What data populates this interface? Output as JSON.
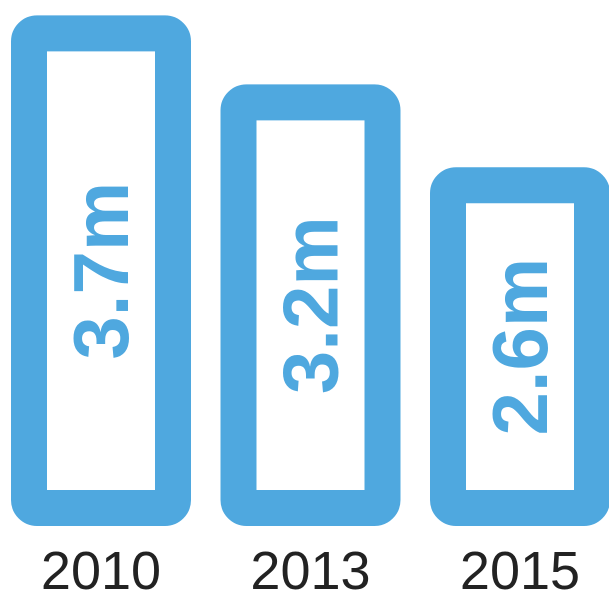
{
  "chart_data": {
    "type": "bar",
    "orientation": "vertical",
    "categories": [
      "2010",
      "2013",
      "2015"
    ],
    "values": [
      3.7,
      3.2,
      2.6
    ],
    "value_labels": [
      "3.7m",
      "3.2m",
      "2.6m"
    ],
    "unit": "m",
    "title": "",
    "xlabel": "",
    "ylabel": "",
    "grid": false,
    "legend": "none",
    "colors": {
      "bar": "#4fa8df",
      "bar_fill": "#ffffff",
      "category_text": "#222222",
      "background": "#ffffff"
    }
  }
}
